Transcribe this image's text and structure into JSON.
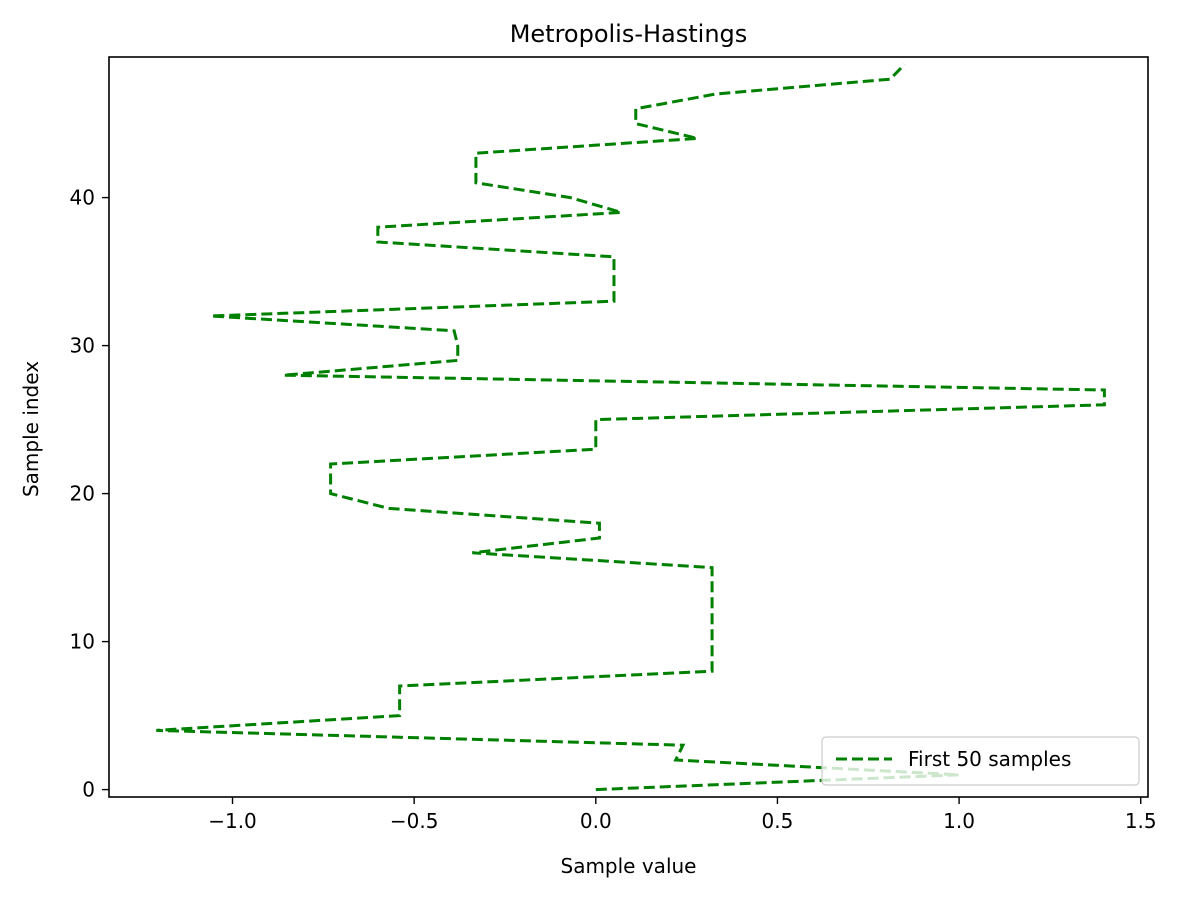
{
  "chart_data": {
    "type": "line",
    "title": "Metropolis-Hastings",
    "xlabel": "Sample value",
    "ylabel": "Sample index",
    "xlim": [
      -1.34,
      1.52
    ],
    "ylim": [
      -0.5,
      49.5
    ],
    "xticks": [
      -1.0,
      -0.5,
      0.0,
      0.5,
      1.0,
      1.5
    ],
    "xtick_labels": [
      "−1.0",
      "−0.5",
      "0.0",
      "0.5",
      "1.0",
      "1.5"
    ],
    "yticks": [
      0,
      10,
      20,
      30,
      40
    ],
    "ytick_labels": [
      "0",
      "10",
      "20",
      "30",
      "40"
    ],
    "grid": false,
    "legend_position": "lower right",
    "series": [
      {
        "name": "First 50 samples",
        "color": "#008000",
        "style": "dashed",
        "x": [
          0.0,
          1.0,
          0.22,
          0.24,
          -1.21,
          -0.54,
          -0.54,
          -0.54,
          0.32,
          0.32,
          0.32,
          0.32,
          0.32,
          0.32,
          0.32,
          0.32,
          -0.34,
          0.01,
          0.01,
          -0.57,
          -0.73,
          -0.73,
          -0.73,
          0.0,
          0.0,
          0.0,
          1.4,
          1.4,
          -0.86,
          -0.38,
          -0.38,
          -0.39,
          -1.06,
          0.05,
          0.05,
          0.05,
          0.05,
          -0.6,
          -0.6,
          0.07,
          -0.07,
          -0.33,
          -0.33,
          -0.33,
          0.28,
          0.11,
          0.11,
          0.33,
          0.81,
          0.85
        ],
        "y": [
          0,
          1,
          2,
          3,
          4,
          5,
          6,
          7,
          8,
          9,
          10,
          11,
          12,
          13,
          14,
          15,
          16,
          17,
          18,
          19,
          20,
          21,
          22,
          23,
          24,
          25,
          26,
          27,
          28,
          29,
          30,
          31,
          32,
          33,
          34,
          35,
          36,
          37,
          38,
          39,
          40,
          41,
          42,
          43,
          44,
          45,
          46,
          47,
          48,
          49
        ]
      }
    ]
  }
}
